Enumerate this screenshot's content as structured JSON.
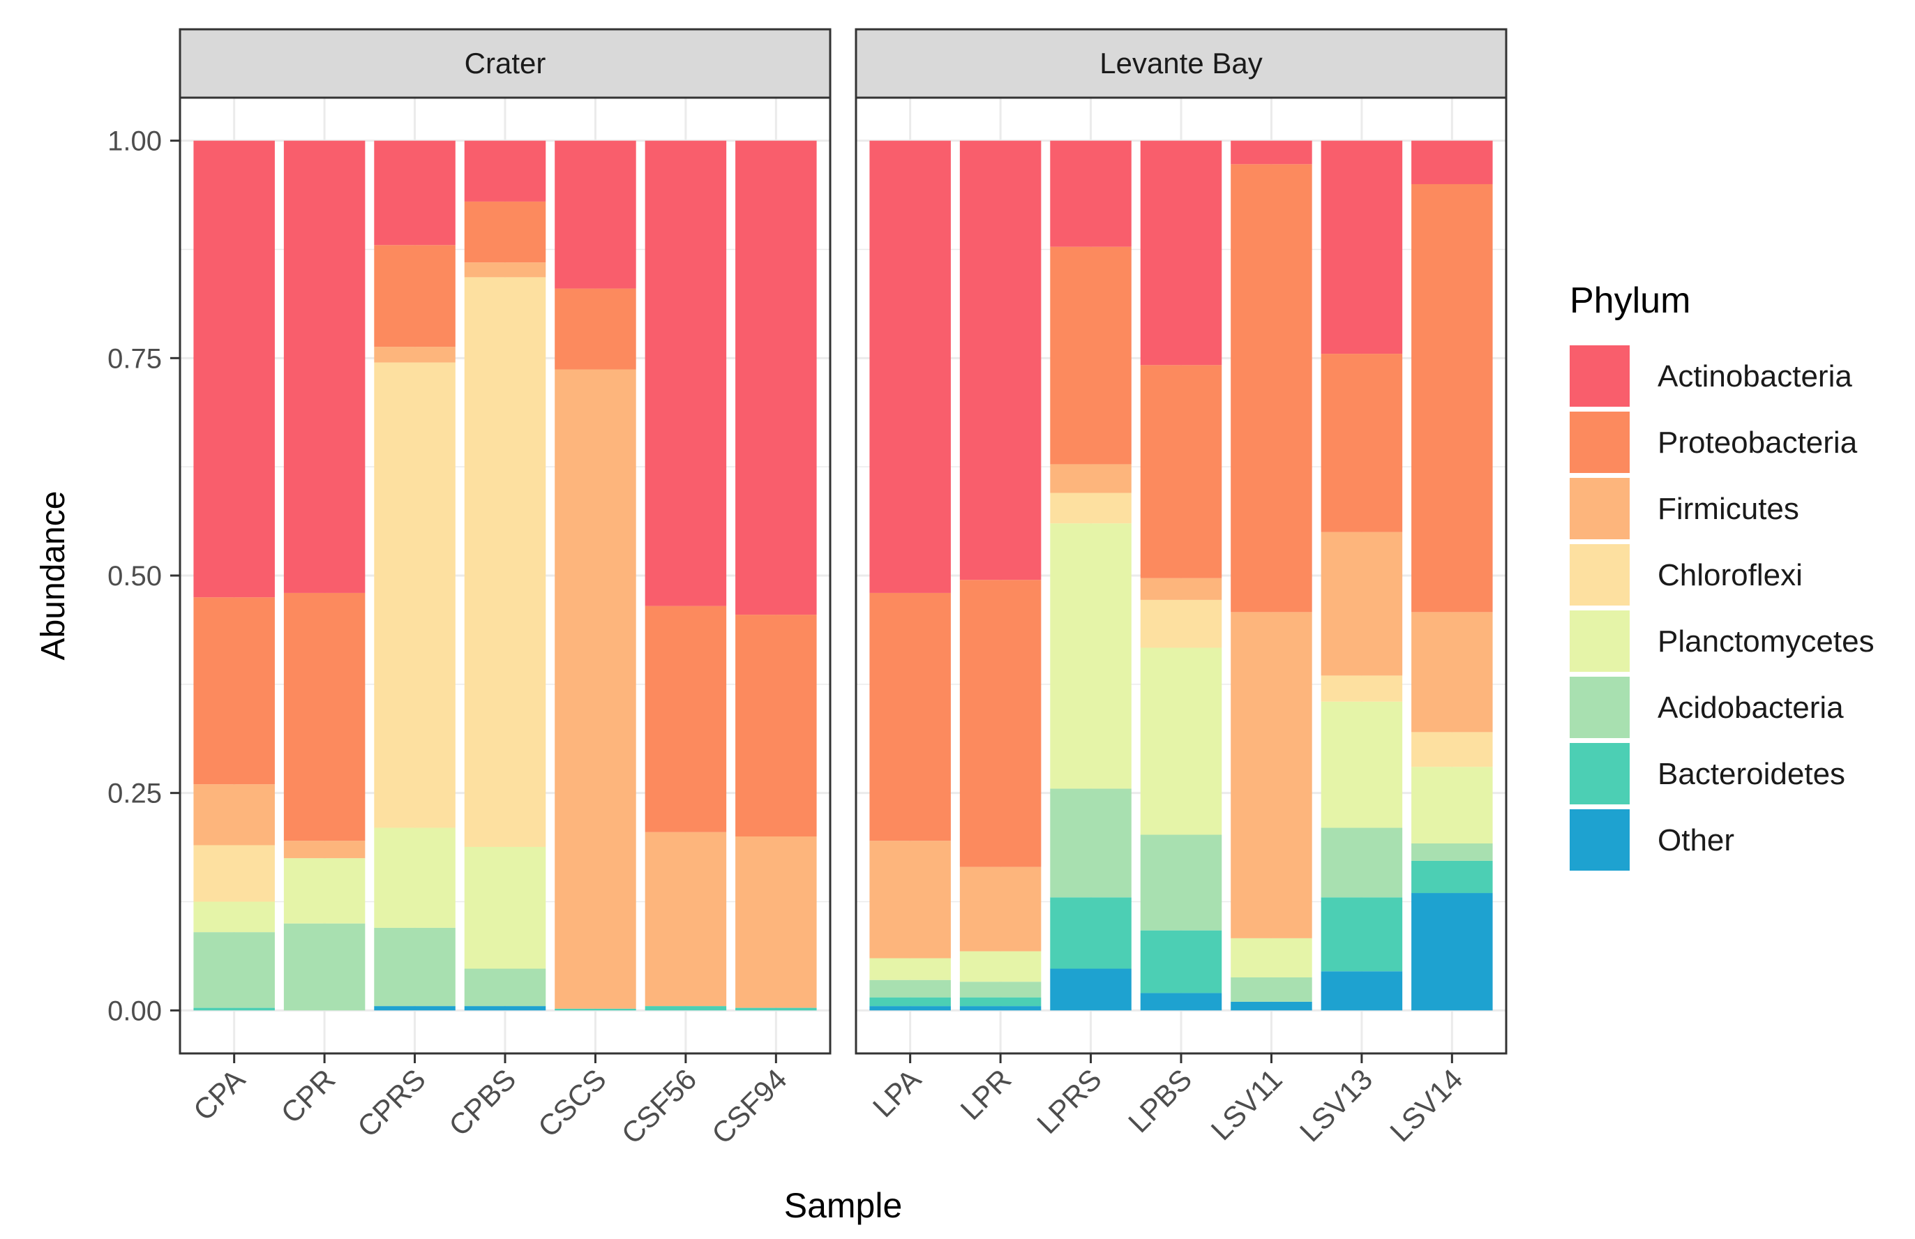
{
  "chart_data": {
    "type": "bar",
    "stacked": true,
    "xlabel": "Sample",
    "ylabel": "Abundance",
    "ylim": [
      0,
      1
    ],
    "y_ticks": [
      0,
      0.25,
      0.5,
      0.75,
      1
    ],
    "y_tick_labels": [
      "0.00",
      "0.25",
      "0.50",
      "0.75",
      "1.00"
    ],
    "grid": true,
    "legend": {
      "title": "Phylum",
      "position": "right",
      "entries": [
        "Actinobacteria",
        "Proteobacteria",
        "Firmicutes",
        "Chloroflexi",
        "Planctomycetes",
        "Acidobacteria",
        "Bacteroidetes",
        "Other"
      ]
    },
    "colors": {
      "Actinobacteria": "#F95E6C",
      "Proteobacteria": "#FC8A5E",
      "Firmicutes": "#FDB57C",
      "Chloroflexi": "#FDE0A0",
      "Planctomycetes": "#E5F4A8",
      "Acidobacteria": "#A8E0B0",
      "Bacteroidetes": "#4CCFB4",
      "Other": "#1EA2D0"
    },
    "stack_order_bottom_to_top": [
      "Other",
      "Bacteroidetes",
      "Acidobacteria",
      "Planctomycetes",
      "Chloroflexi",
      "Firmicutes",
      "Proteobacteria",
      "Actinobacteria"
    ],
    "panels": [
      {
        "title": "Crater",
        "categories": [
          "CPA",
          "CPR",
          "CPRS",
          "CPBS",
          "CSCS",
          "CSF56",
          "CSF94"
        ],
        "series": [
          {
            "name": "Other",
            "values": [
              0.0,
              0.0,
              0.005,
              0.005,
              0.0,
              0.0,
              0.0
            ]
          },
          {
            "name": "Bacteroidetes",
            "values": [
              0.003,
              0.0,
              0.0,
              0.0,
              0.002,
              0.005,
              0.003
            ]
          },
          {
            "name": "Acidobacteria",
            "values": [
              0.087,
              0.1,
              0.09,
              0.043,
              0.0,
              0.0,
              0.0
            ]
          },
          {
            "name": "Planctomycetes",
            "values": [
              0.035,
              0.075,
              0.115,
              0.14,
              0.0,
              0.0,
              0.0
            ]
          },
          {
            "name": "Chloroflexi",
            "values": [
              0.065,
              0.0,
              0.535,
              0.655,
              0.0,
              0.0,
              0.0
            ]
          },
          {
            "name": "Firmicutes",
            "values": [
              0.07,
              0.02,
              0.018,
              0.017,
              0.735,
              0.2,
              0.197
            ]
          },
          {
            "name": "Proteobacteria",
            "values": [
              0.215,
              0.285,
              0.117,
              0.07,
              0.093,
              0.26,
              0.255
            ]
          },
          {
            "name": "Actinobacteria",
            "values": [
              0.525,
              0.52,
              0.12,
              0.07,
              0.17,
              0.535,
              0.545
            ]
          }
        ]
      },
      {
        "title": "Levante Bay",
        "categories": [
          "LPA",
          "LPR",
          "LPRS",
          "LPBS",
          "LSV11",
          "LSV13",
          "LSV14"
        ],
        "series": [
          {
            "name": "Other",
            "values": [
              0.005,
              0.005,
              0.048,
              0.02,
              0.01,
              0.045,
              0.135
            ]
          },
          {
            "name": "Bacteroidetes",
            "values": [
              0.01,
              0.01,
              0.082,
              0.072,
              0.0,
              0.085,
              0.037
            ]
          },
          {
            "name": "Acidobacteria",
            "values": [
              0.02,
              0.018,
              0.125,
              0.11,
              0.028,
              0.08,
              0.02
            ]
          },
          {
            "name": "Planctomycetes",
            "values": [
              0.025,
              0.035,
              0.305,
              0.215,
              0.045,
              0.145,
              0.088
            ]
          },
          {
            "name": "Chloroflexi",
            "values": [
              0.0,
              0.0,
              0.035,
              0.055,
              0.0,
              0.03,
              0.04
            ]
          },
          {
            "name": "Firmicutes",
            "values": [
              0.135,
              0.097,
              0.033,
              0.025,
              0.375,
              0.165,
              0.138
            ]
          },
          {
            "name": "Proteobacteria",
            "values": [
              0.285,
              0.33,
              0.25,
              0.245,
              0.515,
              0.205,
              0.492
            ]
          },
          {
            "name": "Actinobacteria",
            "values": [
              0.52,
              0.505,
              0.122,
              0.258,
              0.027,
              0.245,
              0.05
            ]
          }
        ]
      }
    ]
  }
}
